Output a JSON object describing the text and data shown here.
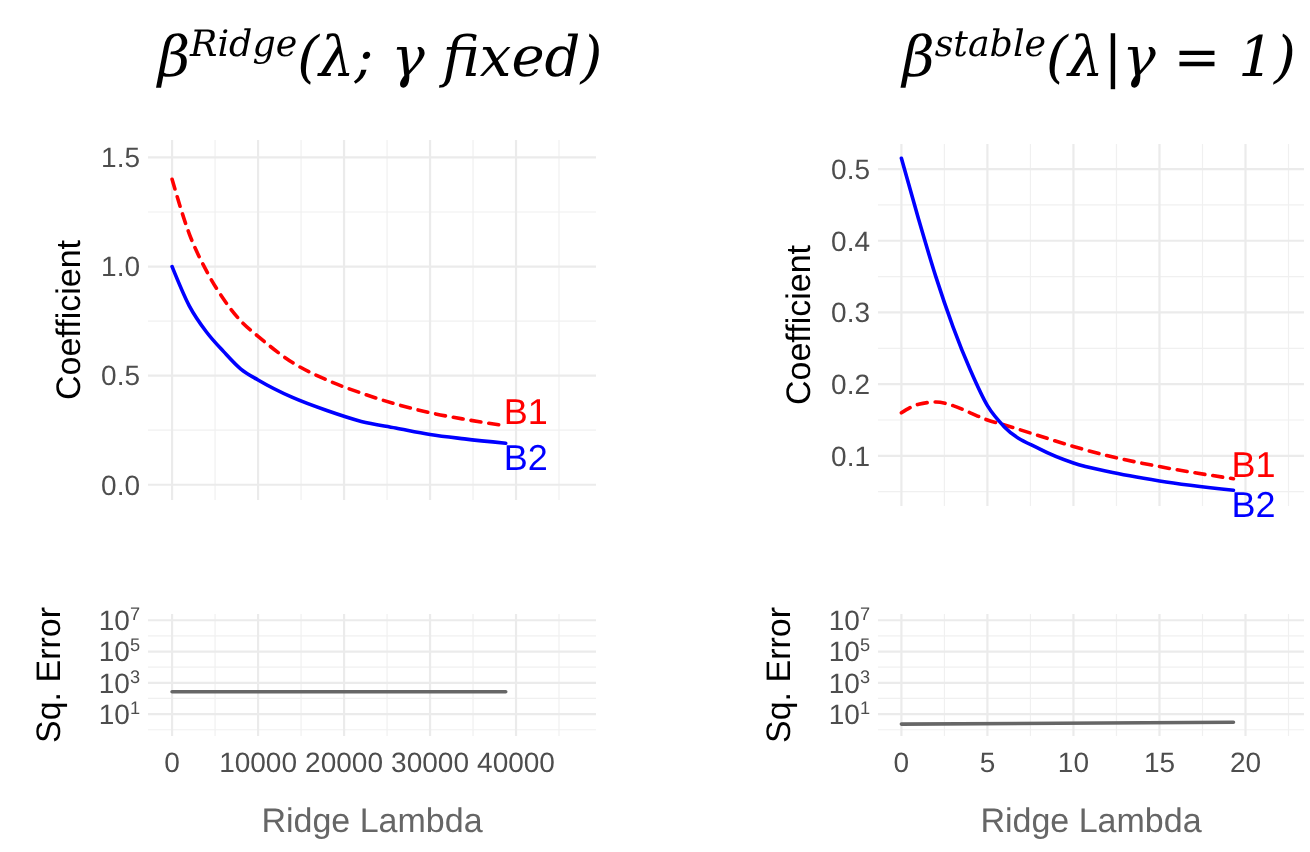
{
  "chart_data": [
    {
      "type": "line",
      "title": "β$^{Ridge}$(λ; γ fixed)",
      "ylabel": "Coefficient",
      "tick_labels": "y",
      "grid": true,
      "x": [
        0,
        2000,
        4000,
        6000,
        8000,
        10000,
        14000,
        18000,
        22000,
        26000,
        30000,
        34000,
        38800
      ],
      "xlim": [
        -2800,
        49300
      ],
      "xticks": [
        0,
        10000,
        20000,
        30000,
        40000
      ],
      "ylim": [
        -0.07,
        1.58
      ],
      "yticks": [
        {
          "value": 0,
          "label": "0.0"
        },
        {
          "value": 0.5,
          "label": "0.5"
        },
        {
          "value": 1,
          "label": "1.0"
        },
        {
          "value": 1.5,
          "label": "1.5"
        }
      ],
      "series": [
        {
          "name": "B1",
          "color": "#ff0000",
          "line_style": "dashed",
          "values": [
            1.4,
            1.15,
            0.98,
            0.85,
            0.75,
            0.68,
            0.56,
            0.48,
            0.42,
            0.37,
            0.33,
            0.3,
            0.27
          ]
        },
        {
          "name": "B2",
          "color": "#0000ff",
          "line_style": "solid",
          "values": [
            1,
            0.82,
            0.7,
            0.61,
            0.53,
            0.48,
            0.4,
            0.34,
            0.29,
            0.26,
            0.23,
            0.21,
            0.19
          ]
        }
      ]
    },
    {
      "type": "line",
      "xlabel": "Ridge Lambda",
      "ylabel": "Sq. Error",
      "grid": true,
      "log": true,
      "x": [
        0,
        38800
      ],
      "xlim": [
        -2800,
        49300
      ],
      "xticks": [
        0,
        10000,
        20000,
        30000,
        40000
      ],
      "ylim": [
        0.4,
        25000000
      ],
      "yticks": [
        {
          "value": 10,
          "label": "10$^{1}$"
        },
        {
          "value": 1000,
          "label": "10$^{3}$"
        },
        {
          "value": 100000,
          "label": "10$^{5}$"
        },
        {
          "value": 10000000,
          "label": "10$^{7}$"
        }
      ],
      "series": [
        {
          "color": "#666666",
          "line_style": "solid",
          "values": [
            270,
            270
          ]
        }
      ]
    },
    {
      "type": "line",
      "title": "β$^{stable}$(λ|γ = 1)",
      "ylabel": "Coefficient",
      "tick_labels": "y",
      "grid": true,
      "x": [
        0,
        1,
        2,
        3,
        4,
        5,
        6,
        8,
        10,
        12,
        15,
        19.3
      ],
      "xlim": [
        -1.36,
        23.4
      ],
      "xticks": [
        0,
        5,
        10,
        15,
        20
      ],
      "ylim": [
        0.03,
        0.535
      ],
      "yticks": [
        0.1,
        0.2,
        0.3,
        0.4,
        0.5
      ],
      "series": [
        {
          "name": "B1",
          "color": "#ff0000",
          "line_style": "dashed",
          "values": [
            0.16,
            0.172,
            0.175,
            0.17,
            0.16,
            0.15,
            0.143,
            0.128,
            0.113,
            0.1,
            0.085,
            0.068
          ]
        },
        {
          "name": "B2",
          "color": "#0000ff",
          "line_style": "solid",
          "values": [
            0.515,
            0.43,
            0.35,
            0.28,
            0.22,
            0.17,
            0.14,
            0.11,
            0.09,
            0.078,
            0.065,
            0.052
          ]
        }
      ]
    },
    {
      "type": "line",
      "xlabel": "Ridge Lambda",
      "ylabel": "Sq. Error",
      "grid": true,
      "log": true,
      "x": [
        0,
        19.3
      ],
      "xlim": [
        -1.36,
        23.4
      ],
      "xticks": [
        0,
        5,
        10,
        15,
        20
      ],
      "ylim": [
        0.4,
        25000000
      ],
      "yticks": [
        {
          "value": 10,
          "label": "10$^{1}$"
        },
        {
          "value": 1000,
          "label": "10$^{3}$"
        },
        {
          "value": 100000,
          "label": "10$^{5}$"
        },
        {
          "value": 10000000,
          "label": "10$^{7}$"
        }
      ],
      "series": [
        {
          "color": "#666666",
          "line_style": "solid",
          "values": [
            2.3,
            3
          ]
        }
      ]
    }
  ]
}
